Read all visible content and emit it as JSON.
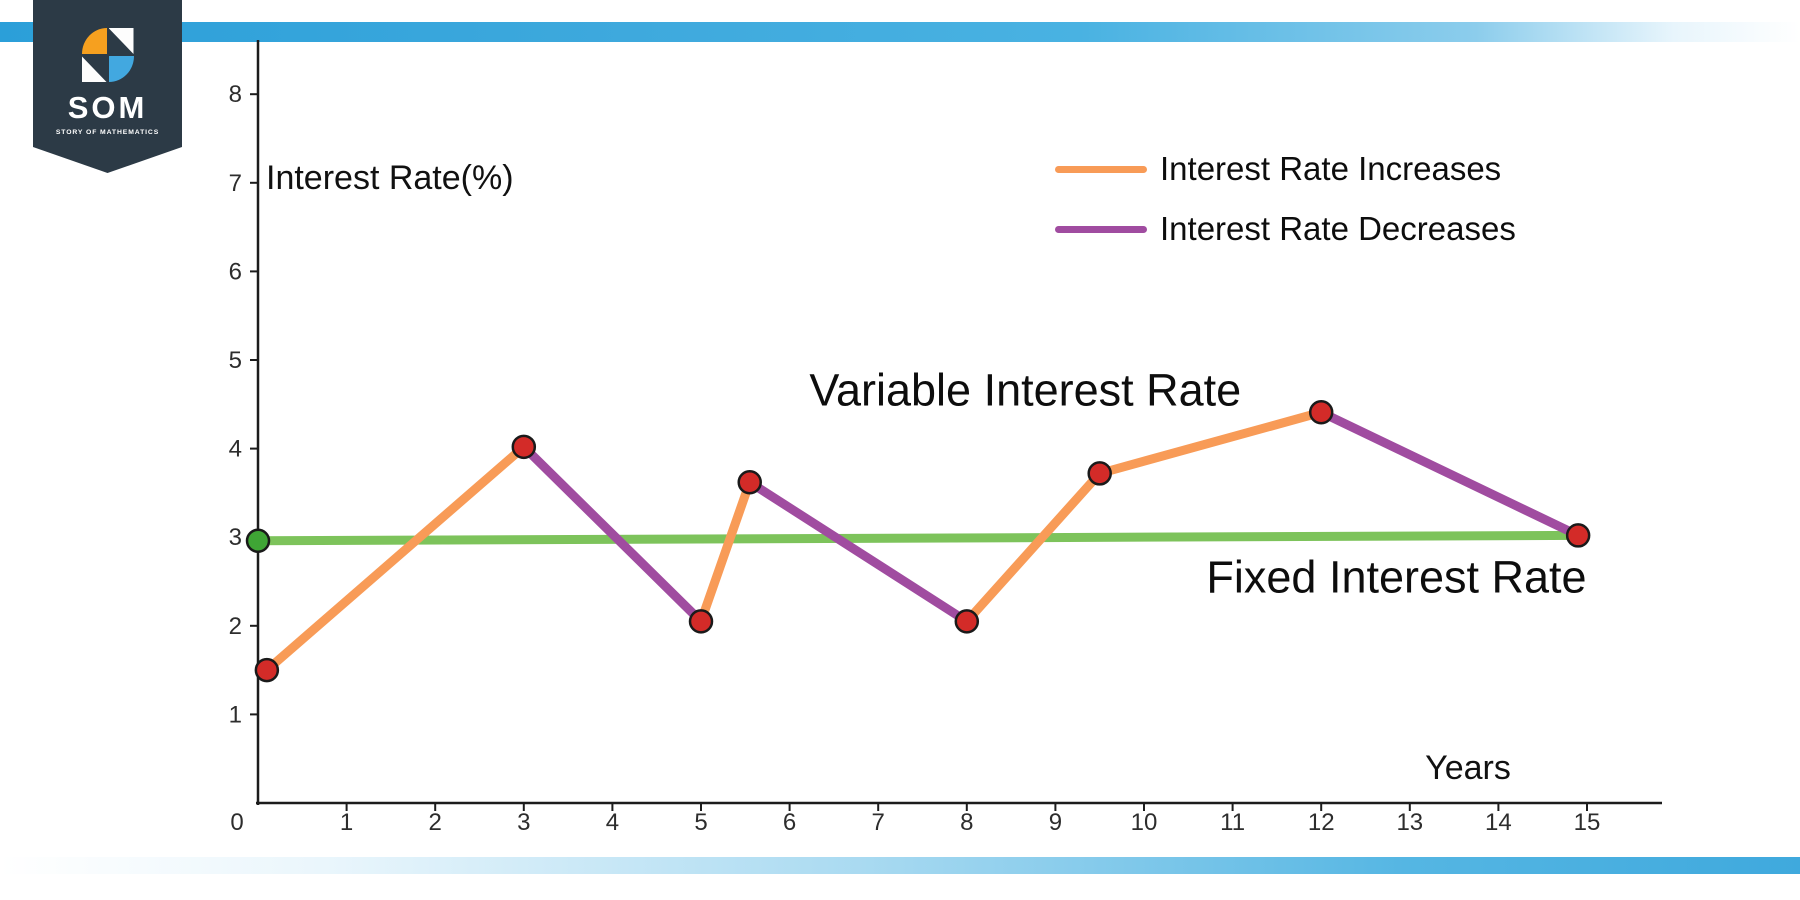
{
  "logo": {
    "acronym": "SOM",
    "tagline": "STORY OF MATHEMATICS",
    "badge_color": "#2c3a46",
    "icon_colors": {
      "orange": "#f6a01f",
      "blue": "#42a8e0",
      "white": "#fdfdfd"
    }
  },
  "brand_bar_color": "#45afe1",
  "chart_data": {
    "type": "line",
    "title": "",
    "xlabel": "Years",
    "ylabel": "Interest Rate(%)",
    "xlim": [
      0,
      15.8
    ],
    "ylim": [
      0,
      8.6
    ],
    "grid": false,
    "x_ticks": [
      0,
      1,
      2,
      3,
      4,
      5,
      6,
      7,
      8,
      9,
      10,
      11,
      12,
      13,
      14,
      15
    ],
    "y_ticks": [
      1,
      2,
      3,
      4,
      5,
      6,
      7,
      8
    ],
    "colors": {
      "increase": "#f89b57",
      "decrease": "#a04ca0",
      "fixed": "#7dc35b",
      "marker": "#d32b28",
      "marker_stroke": "#1a1a1a",
      "start_marker": "#3fa535",
      "axis": "#1c1c1c",
      "tick_text": "#2d2d2d"
    },
    "series": [
      {
        "name": "Variable Interest Rate",
        "points": [
          [
            0.1,
            1.5
          ],
          [
            3,
            4.02
          ],
          [
            5,
            2.05
          ],
          [
            5.55,
            3.62
          ],
          [
            8,
            2.05
          ],
          [
            9.5,
            3.72
          ],
          [
            12,
            4.41
          ],
          [
            14.9,
            3.02
          ]
        ],
        "segment_colors": [
          "increase",
          "decrease",
          "increase",
          "decrease",
          "increase",
          "increase",
          "decrease"
        ],
        "marker": "circle"
      },
      {
        "name": "Fixed Interest Rate",
        "points": [
          [
            0,
            2.96
          ],
          [
            14.9,
            3.02
          ]
        ],
        "line_color": "fixed",
        "start_marker_color": "start_marker",
        "end_marker_color": "marker"
      }
    ],
    "legend": {
      "position": "top-right",
      "entries": [
        {
          "label": "Interest Rate Increases",
          "color": "#f89b57"
        },
        {
          "label": "Interest Rate Decreases",
          "color": "#a04ca0"
        }
      ]
    },
    "annotations": [
      {
        "text": "Variable Interest Rate",
        "x": 8.66,
        "y": 4.63
      },
      {
        "text": "Fixed Interest Rate",
        "x": 12.85,
        "y": 2.52
      }
    ]
  }
}
